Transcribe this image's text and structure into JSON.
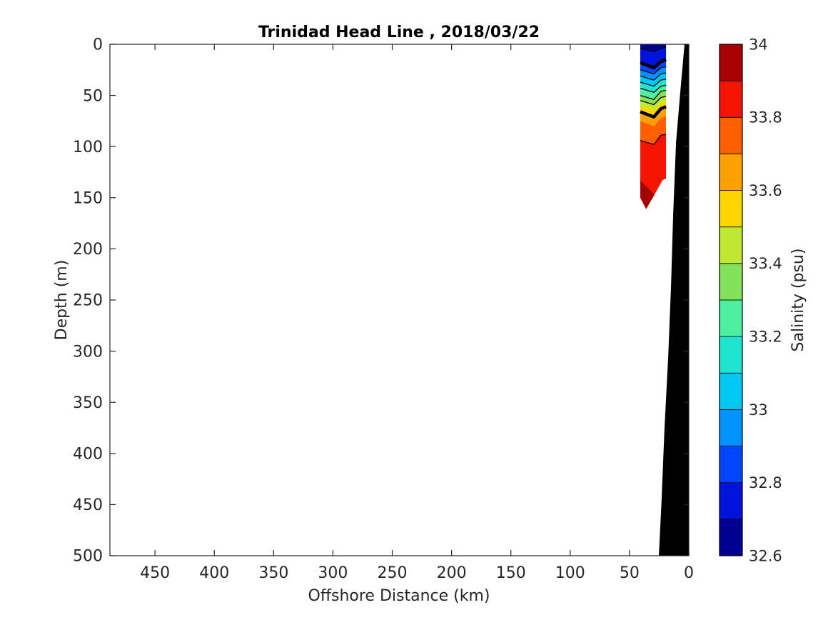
{
  "chart_data": {
    "type": "contourf-section",
    "title": "Trinidad Head Line , 2018/03/22",
    "xlabel": "Offshore Distance (km)",
    "ylabel": "Depth (m)",
    "grid": false,
    "x_axis": {
      "min": 0,
      "max": 488,
      "reversed": true,
      "ticks": [
        450,
        400,
        350,
        300,
        250,
        200,
        150,
        100,
        50,
        0
      ],
      "tick_labels": [
        "450",
        "400",
        "350",
        "300",
        "250",
        "200",
        "150",
        "100",
        "50",
        "0"
      ]
    },
    "y_axis": {
      "min": 0,
      "max": 500,
      "increases_downward": true,
      "ticks": [
        0,
        50,
        100,
        150,
        200,
        250,
        300,
        350,
        400,
        450,
        500
      ],
      "tick_labels": [
        "0",
        "50",
        "100",
        "150",
        "200",
        "250",
        "300",
        "350",
        "400",
        "450",
        "500"
      ]
    },
    "colorbar": {
      "label": "Salinity (psu)",
      "min": 32.6,
      "max": 34,
      "band_step": 0.1,
      "tick_labels_top_to_bottom": [
        "34",
        "33.8",
        "33.6",
        "33.4",
        "33.2",
        "33",
        "32.8",
        "32.6"
      ],
      "colors_low_to_high": [
        "#000091",
        "#0013DC",
        "#0045FF",
        "#0092FF",
        "#00C8F5",
        "#1EE4D2",
        "#4CF0A0",
        "#81E25A",
        "#BEE832",
        "#FFD500",
        "#FFA200",
        "#FF5F00",
        "#F51400",
        "#A80000"
      ],
      "position": "right"
    },
    "section": {
      "description": "Salinity contour patch sampled between ~19 and ~41 km offshore, surface to ~160 m",
      "station_km": [
        40.9,
        29.5,
        23.5,
        19.2
      ],
      "surface_depths_m": [
        0,
        0,
        0,
        0
      ],
      "isohalines": [
        {
          "value": 32.7,
          "depths_m": [
            4,
            7,
            4,
            3
          ],
          "line": "thin"
        },
        {
          "value": 32.8,
          "depths_m": [
            18,
            23,
            17,
            15
          ],
          "line": "thick"
        },
        {
          "value": 32.9,
          "depths_m": [
            25,
            29,
            23,
            22
          ],
          "line": "thin"
        },
        {
          "value": 33.0,
          "depths_m": [
            31,
            35,
            29,
            28
          ],
          "line": "thin"
        },
        {
          "value": 33.1,
          "depths_m": [
            37,
            41,
            35,
            34
          ],
          "line": "thin"
        },
        {
          "value": 33.2,
          "depths_m": [
            43,
            47,
            41,
            40
          ],
          "line": "thin"
        },
        {
          "value": 33.3,
          "depths_m": [
            50,
            54,
            46,
            45
          ],
          "line": "thin"
        },
        {
          "value": 33.4,
          "depths_m": [
            55,
            59,
            52,
            51
          ],
          "line": "thin"
        },
        {
          "value": 33.5,
          "depths_m": [
            60,
            64,
            57,
            56
          ],
          "line": "none"
        },
        {
          "value": 33.6,
          "depths_m": [
            66,
            71,
            63,
            61
          ],
          "line": "thick"
        },
        {
          "value": 33.7,
          "depths_m": [
            75,
            80,
            72,
            70
          ],
          "line": "none"
        },
        {
          "value": 33.8,
          "depths_m": [
            94,
            98,
            89,
            88
          ],
          "line": "thin"
        }
      ],
      "bottom_edge_km_m": [
        [
          40.9,
          150
        ],
        [
          36,
          161
        ],
        [
          28.9,
          147
        ],
        [
          22.3,
          133
        ],
        [
          19.2,
          131
        ]
      ],
      "deepest_band_polygon_km_m": [
        [
          40.9,
          133
        ],
        [
          28.9,
          147
        ],
        [
          36,
          161
        ],
        [
          40.9,
          150
        ]
      ],
      "deepest_band_value_range": [
        33.9,
        34.0
      ]
    },
    "bathymetry": {
      "color": "#000000",
      "profile_km_m": [
        [
          3.6,
          0
        ],
        [
          7.2,
          47
        ],
        [
          10.8,
          96
        ],
        [
          13.2,
          166
        ],
        [
          15,
          236
        ],
        [
          17.4,
          306
        ],
        [
          20.5,
          376
        ],
        [
          22.9,
          445
        ],
        [
          25.3,
          500
        ]
      ],
      "closes_to_coast_km": 0
    },
    "style": {
      "axes_color": "#262626",
      "contour_line_color": "#000000",
      "background": "#ffffff"
    }
  }
}
